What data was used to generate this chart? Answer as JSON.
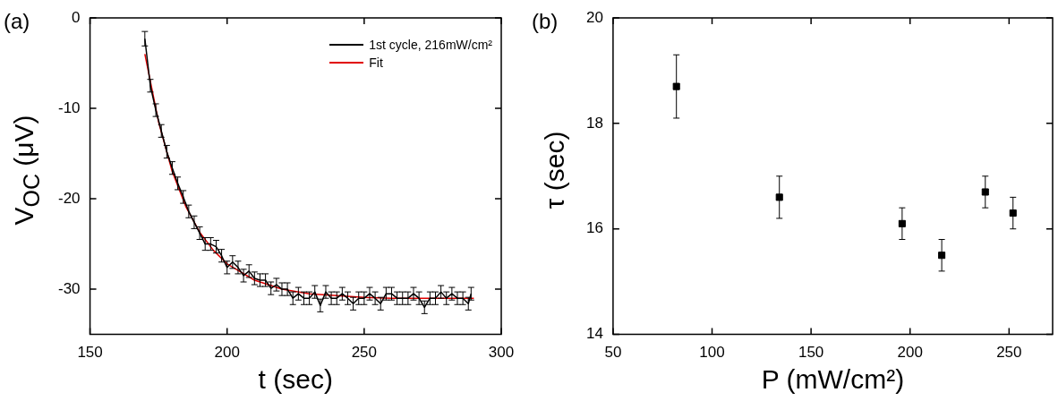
{
  "chart_data": [
    {
      "type": "line",
      "title": "(a)",
      "xlabel": "t (sec)",
      "ylabel": "V$_{OC}$ (μV)",
      "xlim": [
        150,
        300
      ],
      "xticks": [
        150,
        200,
        250,
        300
      ],
      "ylim": [
        -35,
        0
      ],
      "yticks": [
        -30,
        -20,
        -10,
        0
      ],
      "legend": "top right",
      "marker": "none",
      "series": [
        {
          "name": "1st cycle, 216mW/cm²",
          "color": "#000000",
          "x": [
            170,
            172,
            174,
            176,
            178,
            180,
            182,
            184,
            186,
            188,
            190,
            192,
            194,
            196,
            198,
            200,
            202,
            204,
            206,
            208,
            210,
            212,
            214,
            216,
            218,
            220,
            222,
            224,
            226,
            228,
            230,
            232,
            234,
            236,
            238,
            240,
            242,
            244,
            246,
            248,
            250,
            252,
            254,
            256,
            258,
            260,
            262,
            264,
            266,
            268,
            270,
            272,
            274,
            276,
            278,
            280,
            282,
            284,
            286,
            288,
            289
          ],
          "values": [
            -2.3,
            -7.5,
            -10.2,
            -12.5,
            -14.8,
            -16.6,
            -18.3,
            -19.8,
            -21.4,
            -22.6,
            -23.8,
            -25.0,
            -25.0,
            -25.3,
            -26.3,
            -27.6,
            -27.0,
            -27.6,
            -28.5,
            -28.0,
            -28.8,
            -29.0,
            -29.0,
            -29.9,
            -29.5,
            -30.0,
            -30.0,
            -31.0,
            -30.5,
            -31.0,
            -31.0,
            -30.3,
            -31.8,
            -30.3,
            -31.0,
            -31.0,
            -30.5,
            -31.0,
            -31.6,
            -31.0,
            -31.0,
            -30.5,
            -31.0,
            -31.6,
            -30.5,
            -30.5,
            -31.0,
            -31.0,
            -31.0,
            -30.5,
            -31.0,
            -32.0,
            -31.0,
            -31.0,
            -30.3,
            -31.0,
            -30.5,
            -31.0,
            -31.0,
            -31.6,
            -30.5
          ],
          "errors": [
            0.8,
            0.7,
            0.7,
            0.7,
            0.7,
            0.7,
            0.7,
            0.7,
            0.7,
            0.7,
            0.7,
            0.7,
            0.7,
            0.7,
            0.7,
            0.7,
            0.7,
            0.7,
            0.7,
            0.7,
            0.7,
            0.7,
            0.7,
            0.7,
            0.7,
            0.7,
            0.7,
            0.7,
            0.7,
            0.7,
            0.7,
            0.7,
            0.7,
            0.7,
            0.7,
            0.7,
            0.7,
            0.7,
            0.7,
            0.7,
            0.7,
            0.7,
            0.7,
            0.7,
            0.7,
            0.7,
            0.7,
            0.7,
            0.7,
            0.7,
            0.7,
            0.7,
            0.7,
            0.7,
            0.7,
            0.7,
            0.7,
            0.7,
            0.7,
            0.7,
            0.7
          ]
        },
        {
          "name": "Fit",
          "color": "#e00000",
          "x": [
            170,
            175,
            180,
            185,
            190,
            195,
            200,
            210,
            220,
            230,
            240,
            250,
            260,
            270,
            280,
            290
          ],
          "values": [
            -4.0,
            -11.5,
            -17.0,
            -20.9,
            -23.7,
            -25.7,
            -27.2,
            -29.0,
            -30.0,
            -30.5,
            -30.7,
            -30.9,
            -31.0,
            -31.0,
            -31.0,
            -31.0
          ]
        }
      ]
    },
    {
      "type": "scatter",
      "title": "(b)",
      "xlabel": "P (mW/cm²)",
      "ylabel": "τ (sec)",
      "xlim": [
        50,
        272
      ],
      "xticks": [
        50,
        100,
        150,
        200,
        250
      ],
      "ylim": [
        14,
        20
      ],
      "yticks": [
        14,
        16,
        18,
        20
      ],
      "marker": "square",
      "series": [
        {
          "color": "#000000",
          "x": [
            82,
            134,
            196,
            216,
            238,
            252
          ],
          "values": [
            18.7,
            16.6,
            16.1,
            15.5,
            16.7,
            16.3
          ],
          "errors": [
            [
              18.1,
              19.3
            ],
            [
              16.2,
              17.0
            ],
            [
              15.8,
              16.4
            ],
            [
              15.2,
              15.8
            ],
            [
              16.4,
              17.0
            ],
            [
              16.0,
              16.6
            ]
          ]
        }
      ]
    }
  ]
}
